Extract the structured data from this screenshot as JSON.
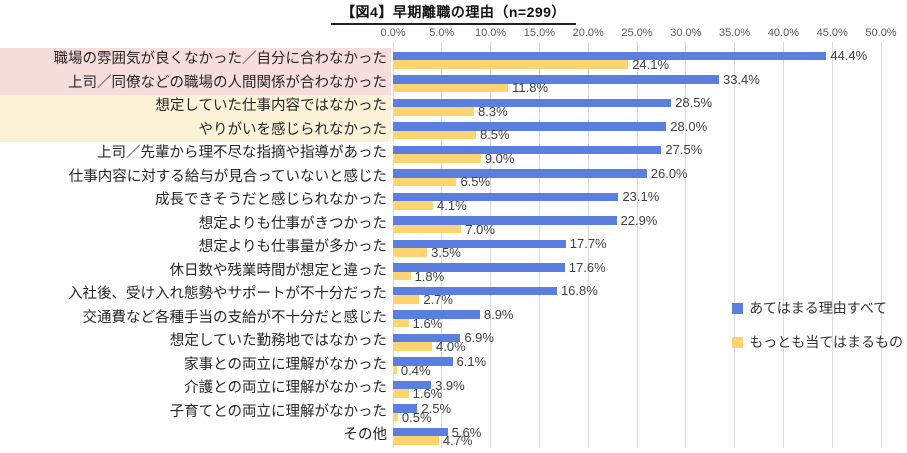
{
  "title": "【図4】早期離職の理由（n=299）",
  "chart_data": {
    "type": "bar",
    "orientation": "horizontal",
    "title": "【図4】早期離職の理由（n=299）",
    "n": 299,
    "x_axis": {
      "min": 0,
      "max": 50,
      "step": 5,
      "ticks": [
        "0.0%",
        "5.0%",
        "10.0%",
        "15.0%",
        "20.0%",
        "25.0%",
        "30.0%",
        "35.0%",
        "40.0%",
        "45.0%",
        "50.0%"
      ]
    },
    "gridlines": true,
    "legend_position": "right-middle",
    "categories": [
      "職場の雰囲気が良くなかった／自分に合わなかった",
      "上司／同僚などの職場の人間関係が合わなかった",
      "想定していた仕事内容ではなかった",
      "やりがいを感じられなかった",
      "上司／先輩から理不尽な指摘や指導があった",
      "仕事内容に対する給与が見合っていないと感じた",
      "成長できそうだと感じられなかった",
      "想定よりも仕事がきつかった",
      "想定よりも仕事量が多かった",
      "休日数や残業時間が想定と違った",
      "入社後、受け入れ態勢やサポートが不十分だった",
      "交通費など各種手当の支給が不十分だと感じた",
      "想定していた勤務地ではなかった",
      "家事との両立に理解がなかった",
      "介護との両立に理解がなかった",
      "子育てとの両立に理解がなかった",
      "その他"
    ],
    "series": [
      {
        "name": "あてはまる理由すべて",
        "color": "#5b7fde",
        "values": [
          44.4,
          33.4,
          28.5,
          28.0,
          27.5,
          26.0,
          23.1,
          22.9,
          17.7,
          17.6,
          16.8,
          8.9,
          6.9,
          6.1,
          3.9,
          2.5,
          5.6
        ]
      },
      {
        "name": "もっとも当てはまるもの",
        "color": "#ffd470",
        "values": [
          24.1,
          11.8,
          8.3,
          8.5,
          9.0,
          6.5,
          4.1,
          7.0,
          3.5,
          1.8,
          2.7,
          1.6,
          4.0,
          0.4,
          1.6,
          0.5,
          4.7
        ]
      }
    ],
    "category_highlights": [
      {
        "rows": [
          0,
          1
        ],
        "color": "#f7dddc"
      },
      {
        "rows": [
          2,
          3
        ],
        "color": "#fbf2d8"
      }
    ],
    "colors": {
      "gridline": "#d9d9d9",
      "axis_text": "#595959",
      "value_text": "#404040"
    }
  }
}
